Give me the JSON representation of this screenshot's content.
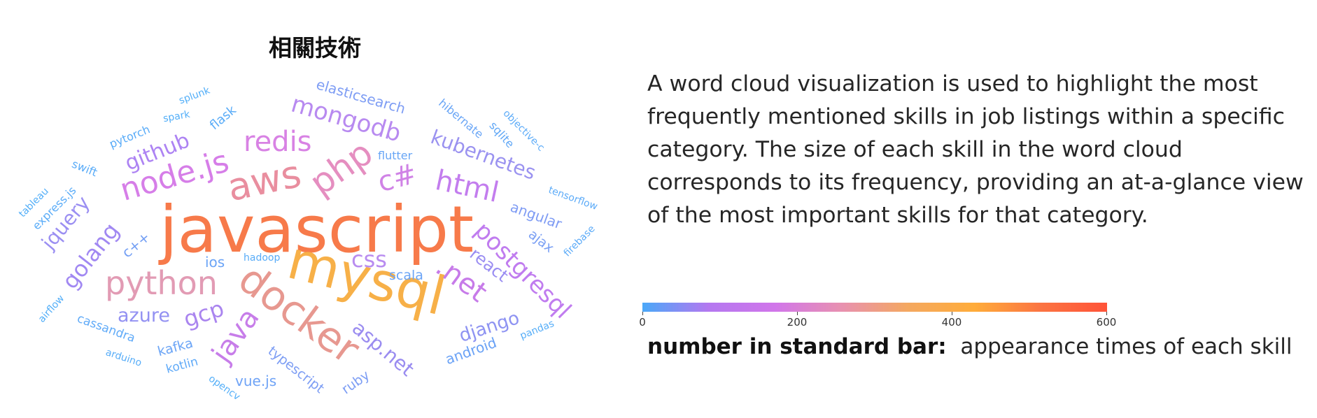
{
  "title": "相關技術",
  "description": "A word cloud visualization is used to highlight the most frequently mentioned skills in job listings within a specific category. The size of each skill in the word cloud corresponds to its frequency, providing an at-a-glance view of the most important skills for that category.",
  "legend": {
    "label": "number in standard bar:",
    "text": "appearance times of each skill",
    "ticks": [
      "0",
      "200",
      "400",
      "600"
    ],
    "range": [
      0,
      600
    ],
    "colors": [
      "#4aa8f8",
      "#b478f0",
      "#d176ea",
      "#e891b0",
      "#f4a860",
      "#ffac3a",
      "#fb7442",
      "#ff5338"
    ]
  },
  "words": [
    {
      "text": "javascript",
      "color": "#f77a4a"
    },
    {
      "text": "mysql",
      "color": "#f7b048"
    },
    {
      "text": "docker",
      "color": "#e79890"
    },
    {
      "text": "aws",
      "color": "#e98e9f"
    },
    {
      "text": "php",
      "color": "#e58ec0"
    },
    {
      "text": "python",
      "color": "#e29bb4"
    },
    {
      "text": "node.js",
      "color": "#d67ee8"
    },
    {
      "text": "redis",
      "color": "#d882e4"
    },
    {
      "text": "c#",
      "color": "#d083e6"
    },
    {
      "text": "html",
      "color": "#c37dee"
    },
    {
      "text": ".net",
      "color": "#c77be9"
    },
    {
      "text": "postgresql",
      "color": "#c07cef"
    },
    {
      "text": "mongodb",
      "color": "#b88af0"
    },
    {
      "text": "github",
      "color": "#ad83f3"
    },
    {
      "text": "java",
      "color": "#c77de9"
    },
    {
      "text": "css",
      "color": "#b98cf0"
    },
    {
      "text": "kubernetes",
      "color": "#9a92f0"
    },
    {
      "text": "golang",
      "color": "#a188f2"
    },
    {
      "text": "gcp",
      "color": "#aa85ef"
    },
    {
      "text": "asp.net",
      "color": "#9a8cf0"
    },
    {
      "text": "jquery",
      "color": "#9b8ff2"
    },
    {
      "text": "azure",
      "color": "#9391f2"
    },
    {
      "text": "django",
      "color": "#8e93f2"
    },
    {
      "text": "react",
      "color": "#9a8df2"
    },
    {
      "text": "angular",
      "color": "#7f9cf4"
    },
    {
      "text": "elasticsearch",
      "color": "#7e9df4"
    },
    {
      "text": "ios",
      "color": "#6ba4f6"
    },
    {
      "text": "scala",
      "color": "#6ba4f6"
    },
    {
      "text": "ajax",
      "color": "#7ba0f4"
    },
    {
      "text": "typescript",
      "color": "#7e9ef4"
    },
    {
      "text": "android",
      "color": "#6aa2f6"
    },
    {
      "text": "vue.js",
      "color": "#6fa3f6"
    },
    {
      "text": "kafka",
      "color": "#6ca5f6"
    },
    {
      "text": "c++",
      "color": "#75a0f4"
    },
    {
      "text": "ruby",
      "color": "#7e9ef4"
    },
    {
      "text": "hibernate",
      "color": "#6aa6f6"
    },
    {
      "text": "sqlite",
      "color": "#62a8f6"
    },
    {
      "text": "objective-c",
      "color": "#5cabf8"
    },
    {
      "text": "flutter",
      "color": "#68a6f6"
    },
    {
      "text": "tensorflow",
      "color": "#5cabf8"
    },
    {
      "text": "firebase",
      "color": "#5cabf8"
    },
    {
      "text": "pandas",
      "color": "#55adf8"
    },
    {
      "text": "hadoop",
      "color": "#58acf8"
    },
    {
      "text": "kotlin",
      "color": "#60aaf8"
    },
    {
      "text": "cassandra",
      "color": "#5faaf8"
    },
    {
      "text": "arduino",
      "color": "#57adf8"
    },
    {
      "text": "airflow",
      "color": "#52aef8"
    },
    {
      "text": "opencv",
      "color": "#52aef8"
    },
    {
      "text": "tableau",
      "color": "#52aef8"
    },
    {
      "text": "express.js",
      "color": "#5aacf8"
    },
    {
      "text": "swift",
      "color": "#5aacf8"
    },
    {
      "text": "pytorch",
      "color": "#5aacf8"
    },
    {
      "text": "spark",
      "color": "#52aef8"
    },
    {
      "text": "splunk",
      "color": "#52aef8"
    },
    {
      "text": "flask",
      "color": "#5aacf8"
    }
  ]
}
